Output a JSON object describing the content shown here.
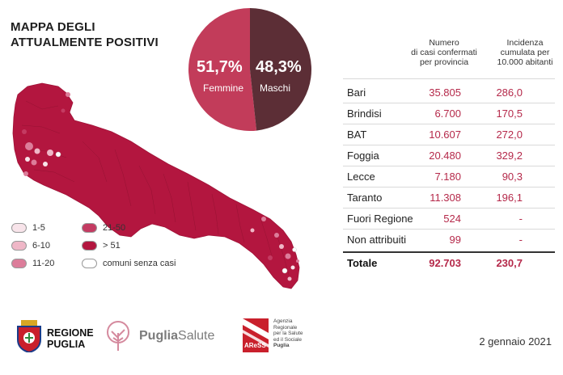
{
  "title": {
    "line1": "MAPPA DEGLI",
    "line2": "ATTUALMENTE POSITIVI"
  },
  "gender": {
    "female_pct": "51,7%",
    "female_label": "Femmine",
    "female_color": "#c23c5a",
    "male_pct": "48,3%",
    "male_label": "Maschi",
    "male_color": "#5c2e36",
    "female_value": 51.7,
    "male_value": 48.3
  },
  "colors": {
    "darkest": "#b3163f",
    "dark": "#c43b62",
    "mid": "#dc7d9a",
    "light": "#efb7c7",
    "lightest": "#f8e4ea",
    "none": "#ffffff",
    "value": "#b5294a"
  },
  "legend": [
    {
      "label": "1-5",
      "color": "#f8e4ea"
    },
    {
      "label": "6-10",
      "color": "#efb7c7"
    },
    {
      "label": "11-20",
      "color": "#dc7d9a"
    },
    {
      "label": "21-50",
      "color": "#c43b62"
    },
    {
      "label": "> 51",
      "color": "#b3163f"
    },
    {
      "label": "comuni senza casi",
      "color": "#ffffff"
    }
  ],
  "table": {
    "col_cases": [
      "Numero",
      "di casi confermati",
      "per provincia"
    ],
    "col_incidence": [
      "Incidenza",
      "cumulata per",
      "10.000 abitanti"
    ],
    "rows": [
      {
        "name": "Bari",
        "cases": "35.805",
        "incidence": "286,0"
      },
      {
        "name": "Brindisi",
        "cases": "6.700",
        "incidence": "170,5"
      },
      {
        "name": "BAT",
        "cases": "10.607",
        "incidence": "272,0"
      },
      {
        "name": "Foggia",
        "cases": "20.480",
        "incidence": "329,2"
      },
      {
        "name": "Lecce",
        "cases": "7.180",
        "incidence": "90,3"
      },
      {
        "name": "Taranto",
        "cases": "11.308",
        "incidence": "196,1"
      },
      {
        "name": "Fuori Regione",
        "cases": "524",
        "incidence": "-"
      },
      {
        "name": "Non attribuiti",
        "cases": "99",
        "incidence": "-"
      }
    ],
    "total": {
      "name": "Totale",
      "cases": "92.703",
      "incidence": "230,7"
    }
  },
  "footer": {
    "regione_line1": "REGIONE",
    "regione_line2": "PUGLIA",
    "puglia_salute_a": "Puglia",
    "puglia_salute_b": "Salute",
    "aress_name": "AReSS",
    "aress_lines": [
      "Agenzia",
      "Regionale",
      "per la Salute",
      "ed il Sociale",
      "Puglia"
    ],
    "date": "2 gennaio 2021"
  }
}
